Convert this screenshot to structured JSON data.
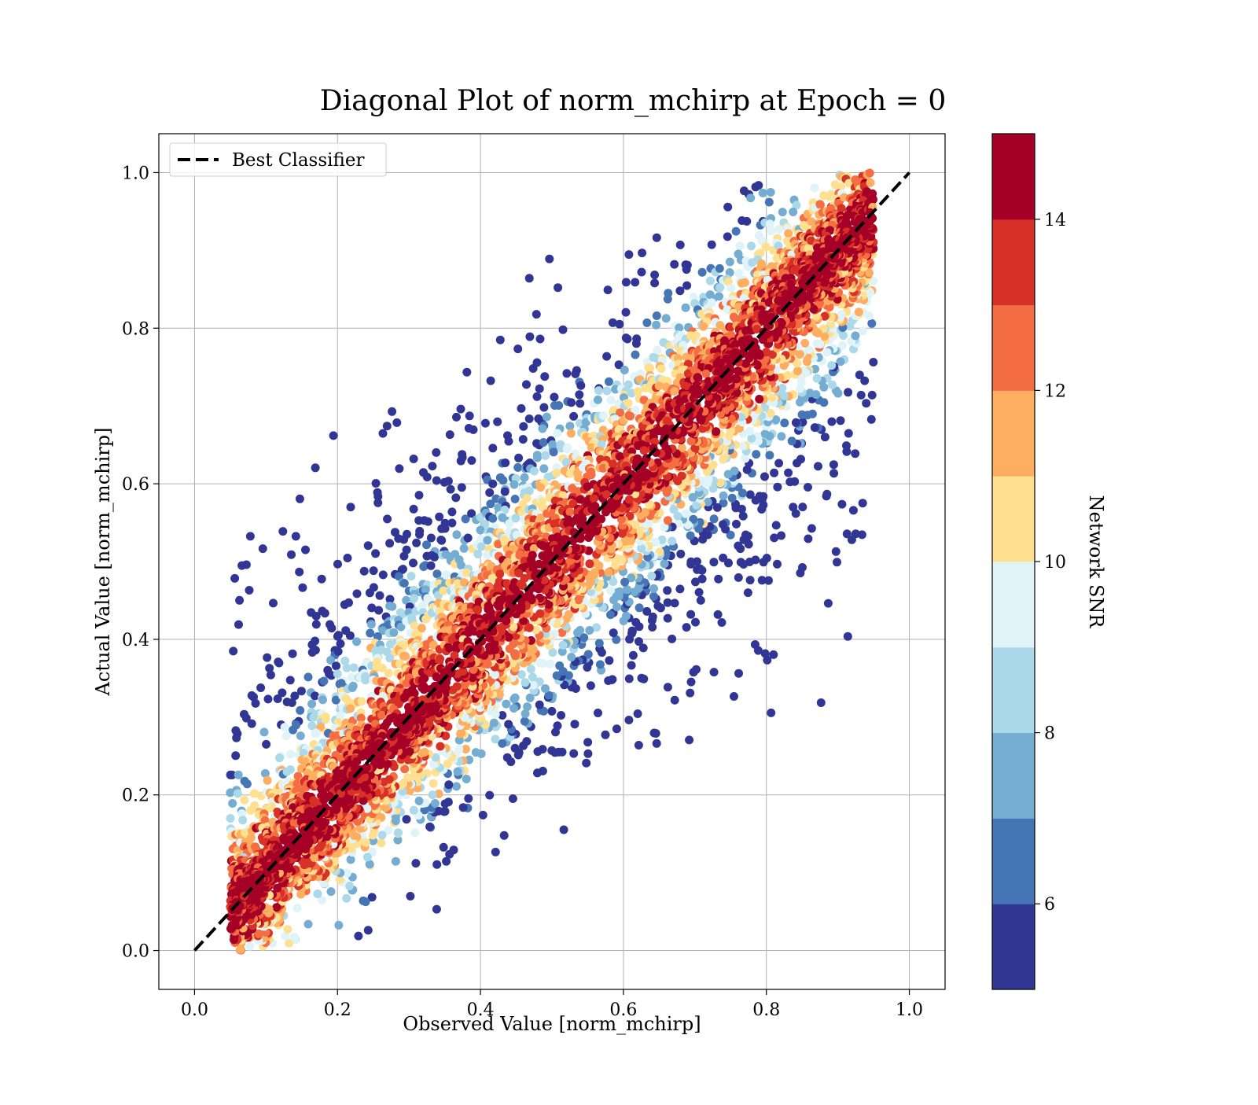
{
  "chart_data": {
    "type": "scatter",
    "title": "Diagonal Plot of norm_mchirp at Epoch = 0",
    "xlabel": "Observed Value [norm_mchirp]",
    "ylabel": "Actual Value [norm_mchirp]",
    "xlim": [
      -0.05,
      1.05
    ],
    "ylim": [
      -0.05,
      1.05
    ],
    "x_ticks": [
      "0.0",
      "0.2",
      "0.4",
      "0.6",
      "0.8",
      "1.0"
    ],
    "y_ticks": [
      "0.0",
      "0.2",
      "0.4",
      "0.6",
      "0.8",
      "1.0"
    ],
    "x_tick_values": [
      0.0,
      0.2,
      0.4,
      0.6,
      0.8,
      1.0
    ],
    "y_tick_values": [
      0.0,
      0.2,
      0.4,
      0.6,
      0.8,
      1.0
    ],
    "grid": true,
    "legend": {
      "position": "top-left",
      "entries": [
        {
          "label": "Best Classifier",
          "style": "dashed",
          "color": "#000000"
        }
      ]
    },
    "reference_line": {
      "name": "Best Classifier",
      "x": [
        0.0,
        1.0
      ],
      "y": [
        0.0,
        1.0
      ]
    },
    "colorbar": {
      "label": "Network SNR",
      "range": [
        5,
        15
      ],
      "tick_values": [
        6,
        8,
        10,
        12,
        14
      ],
      "tick_labels": [
        "6",
        "8",
        "10",
        "12",
        "14"
      ],
      "levels": [
        5,
        6,
        7,
        8,
        9,
        10,
        11,
        12,
        13,
        14,
        15
      ],
      "colors": [
        "#313695",
        "#4575b4",
        "#74add1",
        "#abd9e9",
        "#e0f3f8",
        "#fee090",
        "#fdae61",
        "#f46d43",
        "#d73027",
        "#a50026"
      ],
      "top_color": "#a50026"
    },
    "point_cloud": {
      "description_of_distribution": "points concentrated along y = x with high SNR; low-SNR points scattered further from the diagonal",
      "x_range": [
        0.05,
        0.95
      ],
      "y_range": [
        0.0,
        1.0
      ]
    }
  }
}
